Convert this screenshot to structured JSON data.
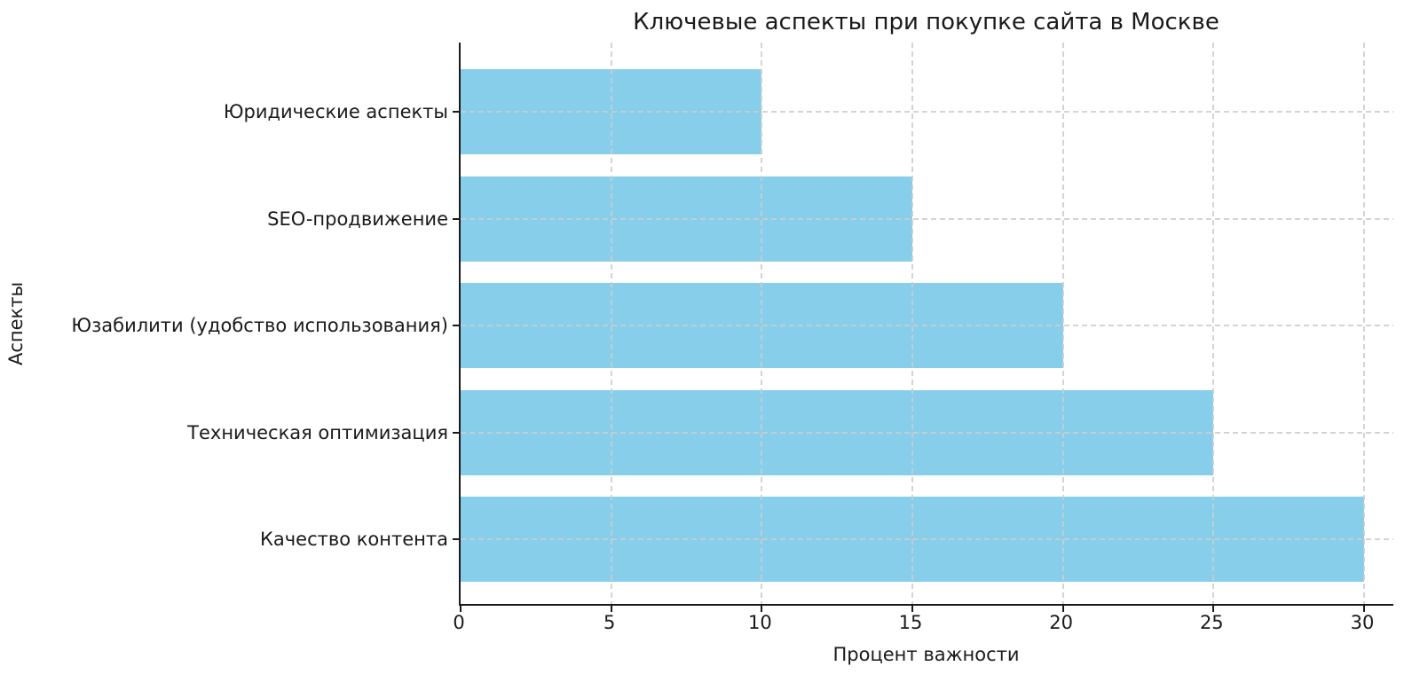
{
  "chart_data": {
    "type": "bar",
    "orientation": "horizontal",
    "title": "Ключевые аспекты при покупке сайта в Москве",
    "xlabel": "Процент важности",
    "ylabel": "Аспекты",
    "categories": [
      "Юридические аспекты",
      "SEO-продвижение",
      "Юзабилити (удобство использования)",
      "Техническая оптимизация",
      "Качество контента"
    ],
    "values": [
      10,
      15,
      20,
      25,
      30
    ],
    "xticks": [
      0,
      5,
      10,
      15,
      20,
      25,
      30
    ],
    "xlim": [
      0,
      31
    ],
    "bar_color": "#87CEEB",
    "grid": true,
    "grid_style": "dashed",
    "legend": false
  }
}
